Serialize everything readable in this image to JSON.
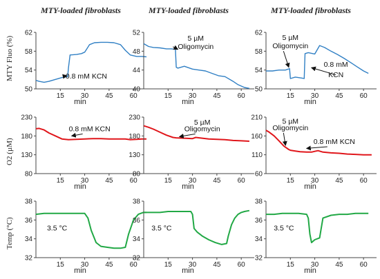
{
  "column_titles": [
    "MTY-loaded fibroblasts",
    "MTY-loaded fibroblasts",
    "MTY-loaded fibroblasts"
  ],
  "row_labels": [
    "MTY Fluo (%)",
    "O2 (µM)",
    "Temp (°C)"
  ],
  "colors": {
    "blue": "#2f7fc4",
    "red": "#e0151a",
    "green": "#21a845"
  },
  "chart_data": [
    {
      "type": "line",
      "panel": "fluo-kcn",
      "row": 0,
      "col": 0,
      "xlabel": "min",
      "ylabel": "MTY Fluo (%)",
      "xlim": [
        0,
        68
      ],
      "ylim": [
        50,
        62
      ],
      "xticks": [
        15,
        30,
        45,
        60
      ],
      "yticks": [
        50,
        54,
        58,
        62
      ],
      "color": "blue",
      "series": [
        {
          "x": [
            0,
            2,
            5,
            8,
            12,
            16,
            19.5,
            20,
            21,
            25,
            28,
            30,
            33,
            36,
            40,
            44,
            48,
            52,
            55,
            58,
            62,
            65,
            68
          ],
          "y": [
            51.8,
            51.6,
            51.4,
            51.6,
            52.0,
            52.4,
            52.6,
            54.5,
            57.2,
            57.3,
            57.5,
            57.8,
            59.4,
            59.8,
            59.9,
            59.9,
            59.8,
            59.4,
            58.2,
            57.2,
            56.9,
            56.9,
            56.8
          ]
        }
      ],
      "annotations": [
        {
          "text": "0.8 mM KCN",
          "x": 31,
          "y": 52.8,
          "arrow_to": [
            19,
            52.8
          ]
        }
      ]
    },
    {
      "type": "line",
      "panel": "fluo-oligo",
      "row": 0,
      "col": 1,
      "xlabel": "min",
      "ylabel": "",
      "xlim": [
        0,
        68
      ],
      "ylim": [
        40,
        52
      ],
      "xticks": [
        15,
        30,
        45,
        60
      ],
      "yticks": [
        40,
        44,
        48,
        52
      ],
      "color": "blue",
      "series": [
        {
          "x": [
            0,
            3,
            6,
            10,
            14,
            17,
            19.5,
            20,
            21,
            25,
            30,
            34,
            38,
            42,
            46,
            50,
            55,
            58,
            62,
            65
          ],
          "y": [
            49.6,
            49.0,
            48.8,
            48.7,
            48.5,
            48.5,
            48.4,
            44.6,
            44.4,
            44.8,
            44.2,
            44.0,
            43.8,
            43.3,
            42.8,
            42.6,
            41.6,
            40.9,
            40.3,
            40.1
          ]
        }
      ],
      "annotations": [
        {
          "text": "5 µM",
          "x": 32,
          "y": 50.8
        },
        {
          "text": "Oligomycin",
          "x": 32,
          "y": 49.1,
          "arrow_to": [
            21,
            48.4
          ]
        }
      ]
    },
    {
      "type": "line",
      "panel": "fluo-both",
      "row": 0,
      "col": 2,
      "xlabel": "min",
      "ylabel": "",
      "xlim": [
        0,
        68
      ],
      "ylim": [
        50,
        62
      ],
      "xticks": [
        15,
        30,
        45,
        60
      ],
      "yticks": [
        50,
        54,
        58,
        62
      ],
      "color": "blue",
      "series": [
        {
          "x": [
            0,
            4,
            8,
            12,
            14.5,
            15,
            18,
            22,
            23.5,
            24,
            26,
            30,
            33,
            36,
            40,
            44,
            48,
            52,
            56,
            60,
            63
          ],
          "y": [
            53.8,
            53.8,
            54.0,
            54.0,
            54.3,
            52.2,
            52.5,
            52.3,
            52.2,
            57.5,
            57.7,
            57.4,
            59.2,
            58.8,
            58.0,
            57.3,
            56.5,
            55.6,
            54.7,
            53.8,
            53.3
          ]
        }
      ],
      "annotations": [
        {
          "text": "5 µM",
          "x": 15,
          "y": 61.0
        },
        {
          "text": "Oligomycin",
          "x": 15,
          "y": 59.2,
          "arrow_to": [
            14,
            54.6
          ]
        },
        {
          "text": "0.8 mM",
          "x": 43,
          "y": 55.3
        },
        {
          "text": "KCN",
          "x": 43,
          "y": 53.1,
          "arrow_to": [
            28,
            54.5
          ]
        }
      ]
    },
    {
      "type": "line",
      "panel": "o2-kcn",
      "row": 1,
      "col": 0,
      "xlabel": "min",
      "ylabel": "O2 (µM)",
      "xlim": [
        0,
        68
      ],
      "ylim": [
        80,
        230
      ],
      "xticks": [
        15,
        30,
        45,
        60
      ],
      "yticks": [
        80,
        130,
        180,
        230
      ],
      "color": "red",
      "series": [
        {
          "x": [
            0,
            2,
            5,
            8,
            12,
            16,
            20,
            25,
            30,
            35,
            40,
            45,
            50,
            55,
            58,
            62,
            65,
            68
          ],
          "y": [
            199,
            200,
            196,
            188,
            180,
            172,
            170,
            171,
            172,
            173,
            173,
            172,
            172,
            172,
            170,
            171,
            172,
            172
          ]
        }
      ],
      "annotations": [
        {
          "text": "0.8 mM KCN",
          "x": 33,
          "y": 200,
          "arrow_to": [
            22,
            180
          ]
        }
      ]
    },
    {
      "type": "line",
      "panel": "o2-oligo",
      "row": 1,
      "col": 1,
      "xlabel": "min",
      "ylabel": "",
      "xlim": [
        0,
        68
      ],
      "ylim": [
        80,
        230
      ],
      "xticks": [
        15,
        30,
        45,
        60
      ],
      "yticks": [
        80,
        130,
        180,
        230
      ],
      "color": "red",
      "series": [
        {
          "x": [
            0,
            3,
            6,
            10,
            14,
            18,
            20,
            25,
            30,
            32,
            36,
            40,
            45,
            50,
            55,
            60,
            65
          ],
          "y": [
            207,
            203,
            198,
            190,
            182,
            176,
            175,
            174,
            173,
            176,
            174,
            172,
            171,
            170,
            168,
            167,
            166
          ]
        }
      ],
      "annotations": [
        {
          "text": "5 µM",
          "x": 36,
          "y": 217
        },
        {
          "text": "Oligomycin",
          "x": 36,
          "y": 200,
          "arrow_to": [
            22,
            178
          ]
        }
      ]
    },
    {
      "type": "line",
      "panel": "o2-both",
      "row": 1,
      "col": 2,
      "xlabel": "min",
      "ylabel": "",
      "xlim": [
        0,
        68
      ],
      "ylim": [
        60,
        210
      ],
      "xticks": [
        15,
        30,
        45,
        60
      ],
      "yticks": [
        60,
        110,
        160,
        210
      ],
      "color": "red",
      "series": [
        {
          "x": [
            0,
            2,
            5,
            8,
            11,
            14,
            15,
            18,
            21,
            25,
            28,
            30,
            32,
            35,
            40,
            45,
            50,
            55,
            60,
            65
          ],
          "y": [
            175,
            170,
            160,
            147,
            133,
            124,
            122,
            120,
            118,
            117,
            117,
            119,
            121,
            117,
            115,
            114,
            112,
            111,
            110,
            110
          ]
        }
      ],
      "annotations": [
        {
          "text": "5 µM",
          "x": 15,
          "y": 200
        },
        {
          "text": "Oligomycin",
          "x": 15,
          "y": 183,
          "arrow_to": [
            12,
            135
          ]
        },
        {
          "text": "0.8 mM KCN",
          "x": 42,
          "y": 146,
          "arrow_to": [
            25,
            127
          ]
        }
      ]
    },
    {
      "type": "line",
      "panel": "temp-1",
      "row": 2,
      "col": 0,
      "xlabel": "min",
      "ylabel": "Temp (°C)",
      "xlim": [
        0,
        68
      ],
      "ylim": [
        32,
        38
      ],
      "xticks": [
        15,
        30,
        45,
        60
      ],
      "yticks": [
        32,
        34,
        36,
        38
      ],
      "color": "green",
      "series": [
        {
          "x": [
            0,
            5,
            10,
            15,
            20,
            25,
            30,
            32,
            34,
            37,
            40,
            44,
            48,
            52,
            55,
            57,
            60,
            63,
            66,
            68
          ],
          "y": [
            36.6,
            36.7,
            36.7,
            36.7,
            36.7,
            36.7,
            36.7,
            36.2,
            34.9,
            33.6,
            33.2,
            33.1,
            33.0,
            33.0,
            33.1,
            34.5,
            36.0,
            36.6,
            36.8,
            36.8
          ]
        }
      ],
      "annotations": [
        {
          "text": "3.5 °C",
          "x": 13,
          "y": 35.2
        }
      ]
    },
    {
      "type": "line",
      "panel": "temp-2",
      "row": 2,
      "col": 1,
      "xlabel": "min",
      "ylabel": "",
      "xlim": [
        0,
        68
      ],
      "ylim": [
        32,
        38
      ],
      "xticks": [
        15,
        30,
        45,
        60
      ],
      "yticks": [
        32,
        34,
        36,
        38
      ],
      "color": "green",
      "series": [
        {
          "x": [
            0,
            5,
            10,
            15,
            20,
            25,
            29,
            30,
            31,
            33,
            36,
            40,
            44,
            48,
            51,
            52,
            54,
            56,
            58,
            60,
            62,
            65
          ],
          "y": [
            36.8,
            36.8,
            36.8,
            36.9,
            36.9,
            36.9,
            36.9,
            36.6,
            35.1,
            34.7,
            34.3,
            33.9,
            33.6,
            33.4,
            33.5,
            34.3,
            35.5,
            36.2,
            36.6,
            36.8,
            36.9,
            37.0
          ]
        }
      ],
      "annotations": [
        {
          "text": "3.5 °C",
          "x": 11,
          "y": 35.2
        }
      ]
    },
    {
      "type": "line",
      "panel": "temp-3",
      "row": 2,
      "col": 2,
      "xlabel": "min",
      "ylabel": "",
      "xlim": [
        0,
        68
      ],
      "ylim": [
        32,
        38
      ],
      "xticks": [
        15,
        30,
        45,
        60
      ],
      "yticks": [
        32,
        34,
        36,
        38
      ],
      "color": "green",
      "series": [
        {
          "x": [
            0,
            5,
            10,
            15,
            20,
            25,
            26,
            27,
            28,
            30,
            33,
            35,
            40,
            45,
            50,
            55,
            60,
            63
          ],
          "y": [
            36.6,
            36.6,
            36.7,
            36.7,
            36.7,
            36.6,
            36.2,
            34.5,
            33.6,
            33.9,
            34.1,
            36.2,
            36.5,
            36.6,
            36.6,
            36.7,
            36.7,
            36.7
          ]
        }
      ],
      "annotations": [
        {
          "text": "3.5 °C",
          "x": 11,
          "y": 35.2
        }
      ]
    }
  ]
}
